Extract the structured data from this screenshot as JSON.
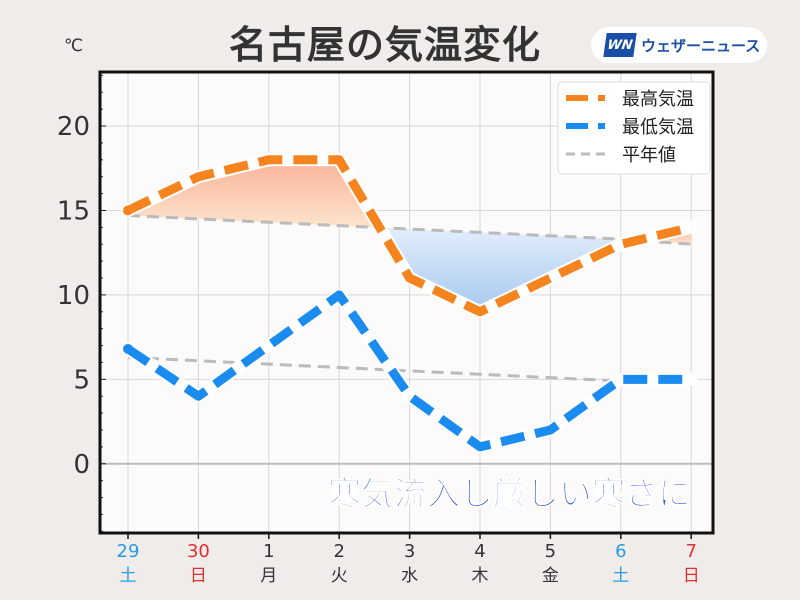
{
  "chart_data": {
    "type": "line",
    "title": "名古屋の気温変化",
    "ylabel": "℃",
    "ylim": [
      -4.1,
      23.2
    ],
    "yticks": [
      0,
      5,
      10,
      15,
      20
    ],
    "categories": [
      {
        "day": "29",
        "weekday": "土",
        "color": "#2a9be0"
      },
      {
        "day": "30",
        "weekday": "日",
        "color": "#e03030"
      },
      {
        "day": "1",
        "weekday": "月",
        "color": "#333333"
      },
      {
        "day": "2",
        "weekday": "火",
        "color": "#333333"
      },
      {
        "day": "3",
        "weekday": "水",
        "color": "#333333"
      },
      {
        "day": "4",
        "weekday": "木",
        "color": "#333333"
      },
      {
        "day": "5",
        "weekday": "金",
        "color": "#333333"
      },
      {
        "day": "6",
        "weekday": "土",
        "color": "#2a9be0"
      },
      {
        "day": "7",
        "weekday": "日",
        "color": "#e03030"
      }
    ],
    "series": [
      {
        "name": "最高気温",
        "color": "#f5841f",
        "values": [
          15,
          17,
          18,
          18,
          11,
          9,
          11,
          13,
          14
        ]
      },
      {
        "name": "最低気温",
        "color": "#1a8cf0",
        "values": [
          6.8,
          4,
          7,
          10,
          4,
          1,
          2,
          5,
          5
        ]
      }
    ],
    "normals": {
      "name": "平年値",
      "color": "#bbbbbb",
      "high": [
        14.7,
        14.5,
        14.3,
        14.1,
        13.9,
        13.7,
        13.5,
        13.3,
        13.0
      ],
      "low": [
        6.3,
        6.1,
        5.9,
        5.7,
        5.5,
        5.3,
        5.1,
        4.9,
        4.7
      ]
    },
    "annotation": "寒気流入し厳しい寒さに",
    "annotation_color": "#1540e0",
    "legend_position": "top-right",
    "grid": true
  },
  "logo": {
    "mark": "WN",
    "text": "ウェザーニュース"
  }
}
